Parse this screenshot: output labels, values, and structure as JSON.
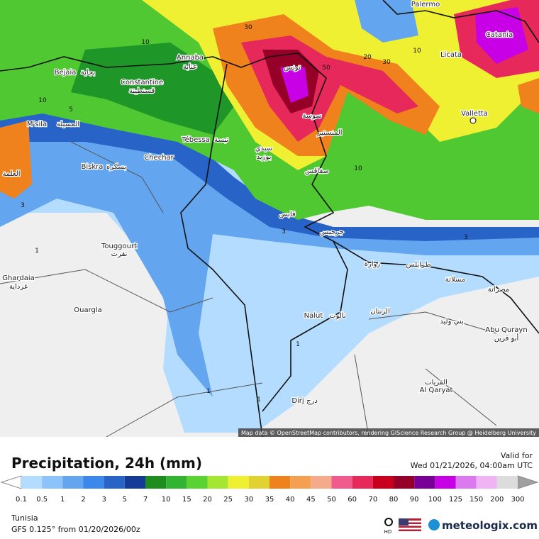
{
  "map": {
    "attribution": "Map data © OpenStreetMap contributors, rendering GIScience Research Group @ Heidelberg University",
    "places": [
      "Palermo",
      "Catania",
      "Licata",
      "Valletta",
      "Annaba",
      "عنابة",
      "تونس",
      "Bejaia",
      "بجاية",
      "Constantine",
      "قسنطينة",
      "M'sila",
      "المسيلة",
      "سوسة",
      "المنستير",
      "Tébessa",
      "تبسة",
      "سيدي",
      "بوزيد",
      "Chechar",
      "Biskra",
      "بسكرة",
      "صفاقس",
      "قابس",
      "جرجيس",
      "Touggourt",
      "تقرت",
      "Ghardaia",
      "غرداية",
      "Ouargla",
      "زوارة",
      "طرابلس",
      "مسلاتة",
      "مصراتة",
      "Nalut",
      "نالوت",
      "الزنتان",
      "بني وليد",
      "Abu Qurayn",
      "أبو قرين",
      "القريات",
      "Al Qaryat",
      "Dirj",
      "درج",
      "العلمة"
    ],
    "contour_labels": [
      10,
      30,
      20,
      30,
      10,
      50,
      10,
      3,
      3,
      1,
      1,
      1,
      1,
      3,
      10,
      5
    ]
  },
  "footer": {
    "title": "Precipitation, 24h (mm)",
    "valid_label": "Valid for",
    "valid_time": "Wed 01/21/2026, 04:00am UTC",
    "region": "Tunisia",
    "model": "GFS 0.125° from  01/20/2026/00z",
    "hd": "HD",
    "brand": "meteologix.com"
  },
  "legend": {
    "ticks": [
      0.1,
      0.5,
      1,
      2,
      3,
      5,
      7,
      10,
      15,
      20,
      25,
      30,
      35,
      40,
      45,
      50,
      60,
      70,
      80,
      90,
      100,
      125,
      150,
      200,
      300
    ],
    "colors": [
      "#b4dcff",
      "#8cc3fa",
      "#64a5f0",
      "#3c87eb",
      "#2864c8",
      "#143c96",
      "#1e8c1e",
      "#32b432",
      "#5ad232",
      "#a5e632",
      "#f0f032",
      "#e1d232",
      "#f0821e",
      "#f5a050",
      "#f5aa8c",
      "#f05a8c",
      "#e6285a",
      "#c8001e",
      "#960028",
      "#780096",
      "#c800e6",
      "#dc78f0",
      "#f0b4f5",
      "#dcdcdc"
    ]
  }
}
